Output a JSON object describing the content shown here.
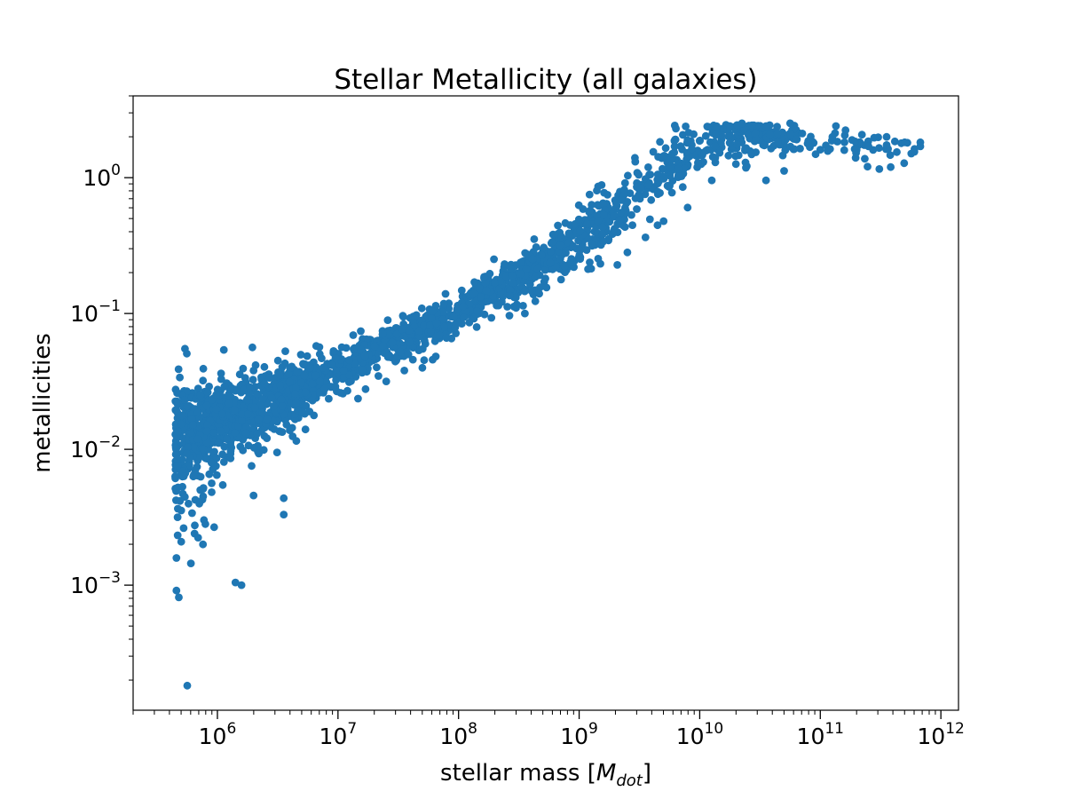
{
  "chart_data": {
    "type": "scatter",
    "title": "Stellar Metallicity (all galaxies)",
    "xlabel": "stellar mass [",
    "xlabel_math": "M",
    "xlabel_sub": "dot",
    "xlabel_close": "]",
    "ylabel": "metallicities",
    "xscale": "log",
    "yscale": "log",
    "xlim": [
      200000,
      1400000000000
    ],
    "ylim": [
      0.00012,
      4.0
    ],
    "grid": false,
    "marker_color": "#1f77b4",
    "x_ticks": [
      {
        "value": 1000000,
        "base": "10",
        "exp": "6"
      },
      {
        "value": 10000000,
        "base": "10",
        "exp": "7"
      },
      {
        "value": 100000000,
        "base": "10",
        "exp": "8"
      },
      {
        "value": 1000000000,
        "base": "10",
        "exp": "9"
      },
      {
        "value": 10000000000,
        "base": "10",
        "exp": "10"
      },
      {
        "value": 100000000000,
        "base": "10",
        "exp": "11"
      },
      {
        "value": 1000000000000,
        "base": "10",
        "exp": "12"
      }
    ],
    "y_ticks": [
      {
        "value": 1.0,
        "base": "10",
        "exp": "0"
      },
      {
        "value": 0.1,
        "base": "10",
        "exp": "−1"
      },
      {
        "value": 0.01,
        "base": "10",
        "exp": "−2"
      },
      {
        "value": 0.001,
        "base": "10",
        "exp": "−3"
      }
    ],
    "trend": [
      [
        5.65,
        -1.92,
        0.22
      ],
      [
        6.0,
        -1.8,
        0.16
      ],
      [
        6.5,
        -1.62,
        0.1
      ],
      [
        7.0,
        -1.42,
        0.08
      ],
      [
        7.5,
        -1.2,
        0.07
      ],
      [
        8.0,
        -0.98,
        0.07
      ],
      [
        8.5,
        -0.72,
        0.08
      ],
      [
        9.0,
        -0.45,
        0.1
      ],
      [
        9.5,
        -0.1,
        0.13
      ],
      [
        9.8,
        0.15,
        0.12
      ],
      [
        10.2,
        0.3,
        0.08
      ],
      [
        10.6,
        0.3,
        0.06
      ],
      [
        11.0,
        0.25,
        0.06
      ],
      [
        11.85,
        0.22,
        0.05
      ]
    ],
    "generated_count": 2200,
    "points": [
      [
        5.75,
        -3.74
      ],
      [
        6.15,
        -2.98
      ],
      [
        5.66,
        -3.04
      ],
      [
        5.68,
        -3.09
      ],
      [
        5.78,
        -2.84
      ],
      [
        5.66,
        -2.8
      ],
      [
        5.7,
        -2.68
      ],
      [
        5.72,
        -2.58
      ],
      [
        5.81,
        -2.62
      ],
      [
        5.84,
        -2.65
      ],
      [
        5.79,
        -2.47
      ],
      [
        5.69,
        -2.38
      ],
      [
        6.55,
        -2.48
      ],
      [
        6.55,
        -2.36
      ],
      [
        6.3,
        -2.34
      ],
      [
        5.85,
        -2.4
      ],
      [
        6.04,
        -1.74
      ],
      [
        5.86,
        -1.6
      ],
      [
        5.92,
        -1.58
      ],
      [
        6.85,
        -1.5
      ],
      [
        6.95,
        -1.38
      ],
      [
        6.3,
        -1.42
      ],
      [
        6.45,
        -1.62
      ],
      [
        6.6,
        -1.86
      ],
      [
        6.8,
        -1.75
      ],
      [
        7.4,
        -1.5
      ],
      [
        7.55,
        -1.42
      ],
      [
        7.7,
        -1.4
      ],
      [
        7.9,
        -1.18
      ],
      [
        8.15,
        -1.1
      ],
      [
        8.55,
        -1.0
      ],
      [
        8.85,
        -0.75
      ],
      [
        9.1,
        -0.67
      ],
      [
        9.2,
        -0.47
      ],
      [
        9.4,
        -0.55
      ],
      [
        9.55,
        -0.44
      ],
      [
        9.65,
        -0.35
      ],
      [
        9.7,
        -0.32
      ],
      [
        9.9,
        -0.22
      ],
      [
        10.1,
        -0.02
      ],
      [
        10.3,
        0.1
      ],
      [
        10.55,
        -0.02
      ],
      [
        10.7,
        0.05
      ],
      [
        10.9,
        0.27
      ],
      [
        11.1,
        0.3
      ],
      [
        11.2,
        0.26
      ],
      [
        11.4,
        0.23
      ],
      [
        11.55,
        0.24
      ],
      [
        11.7,
        0.26
      ],
      [
        11.83,
        0.26
      ],
      [
        11.83,
        0.23
      ],
      [
        11.78,
        0.19
      ],
      [
        11.55,
        0.3
      ],
      [
        11.13,
        0.38
      ],
      [
        10.75,
        0.4
      ],
      [
        10.55,
        0.38
      ],
      [
        10.35,
        0.4
      ],
      [
        10.25,
        0.38
      ],
      [
        9.95,
        0.32
      ],
      [
        9.8,
        0.28
      ],
      [
        5.67,
        -2.5
      ],
      [
        5.7,
        -2.45
      ],
      [
        5.73,
        -2.35
      ],
      [
        5.76,
        -2.4
      ],
      [
        5.8,
        -2.2
      ],
      [
        5.65,
        -2.2
      ],
      [
        5.67,
        -2.12
      ],
      [
        5.88,
        -2.7
      ],
      [
        5.9,
        -2.55
      ],
      [
        6.2,
        -3.0
      ]
    ]
  }
}
